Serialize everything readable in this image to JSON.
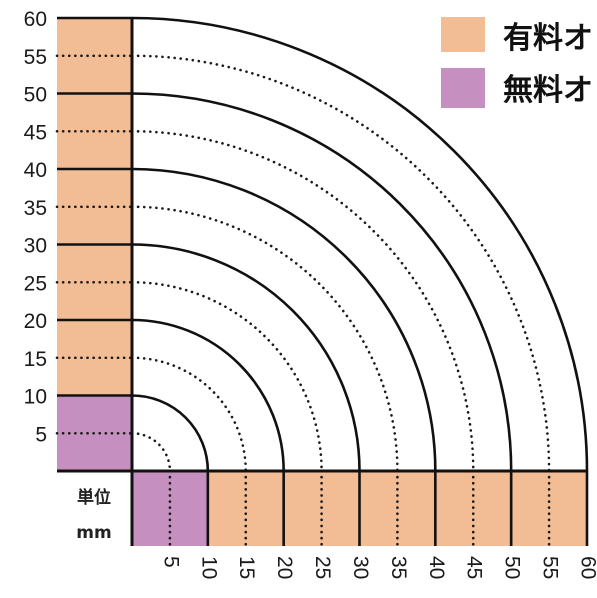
{
  "legend": {
    "paid": {
      "label": "有料オ",
      "color": "#f2bc94"
    },
    "free": {
      "label": "無料オ",
      "color": "#c58fc0"
    }
  },
  "unit": {
    "line1": "単位",
    "line2": "mm"
  },
  "chart_data": {
    "type": "diagram",
    "max_mm": 60,
    "step_mm": 5,
    "y_ticks": [
      "60",
      "55",
      "50",
      "45",
      "40",
      "35",
      "30",
      "25",
      "20",
      "15",
      "10",
      "5"
    ],
    "x_ticks": [
      "5",
      "10",
      "15",
      "20",
      "25",
      "30",
      "35",
      "40",
      "45",
      "50",
      "55",
      "60"
    ],
    "free_up_to_mm": 10,
    "solid_arcs_mm": [
      10,
      20,
      30,
      40,
      50,
      60
    ],
    "dotted_arcs_mm": [
      5,
      15,
      25,
      35,
      45,
      55
    ]
  }
}
